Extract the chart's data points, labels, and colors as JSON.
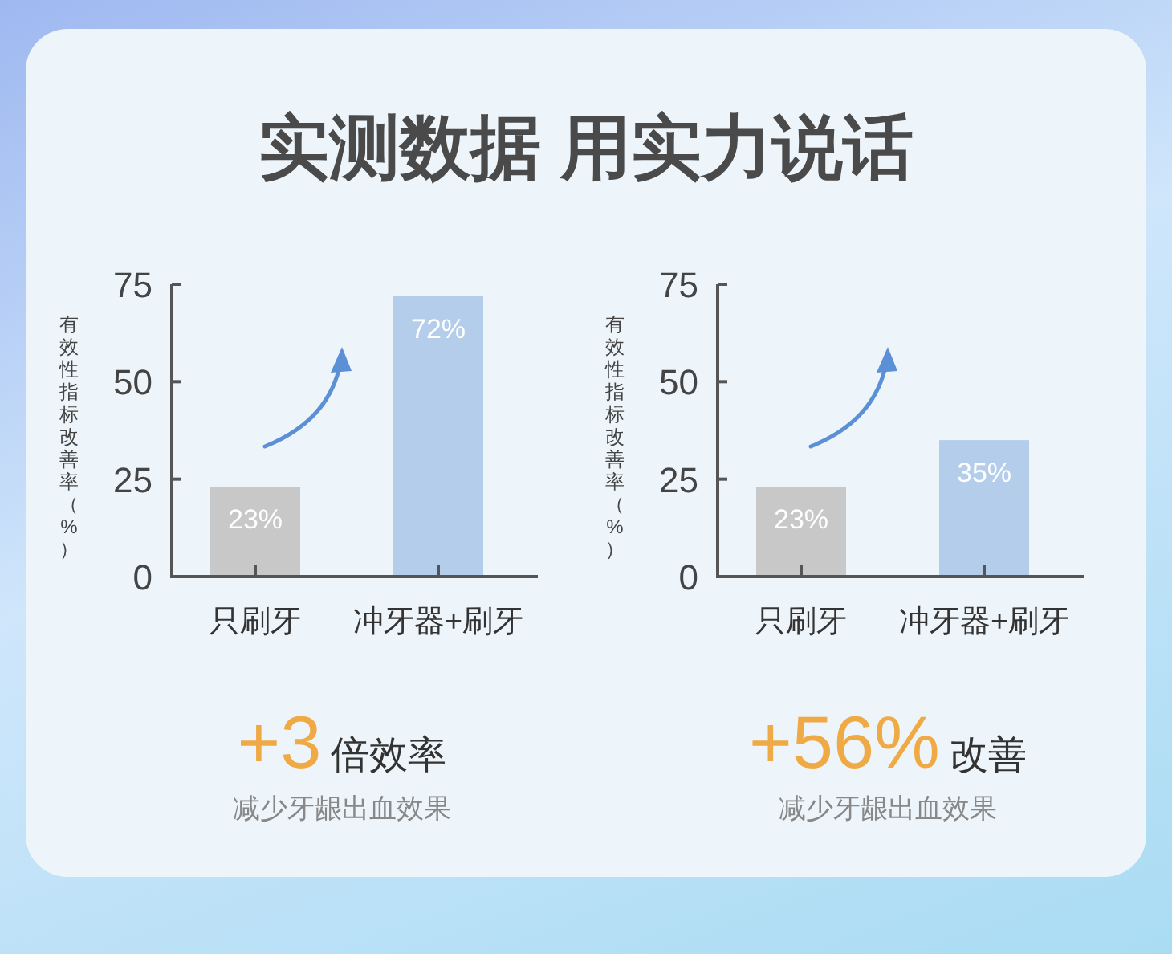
{
  "chart_data": [
    {
      "type": "bar",
      "title": "实测数据 用实力说话",
      "ylabel": "有效性指标改善率（%）",
      "categories": [
        "只刷牙",
        "冲牙器+刷牙"
      ],
      "values": [
        23,
        72
      ],
      "colors": [
        "#c8c8c8",
        "#b4cdea"
      ],
      "value_labels": [
        "23%",
        "72%"
      ],
      "ylim": [
        0,
        75
      ],
      "yticks": [
        0,
        25,
        50,
        75
      ],
      "grid": false,
      "annotations": [
        "+3",
        "倍效率",
        "减少牙龈出血效果"
      ]
    },
    {
      "type": "bar",
      "ylabel": "有效性指标改善率（%）",
      "categories": [
        "只刷牙",
        "冲牙器+刷牙"
      ],
      "values": [
        23,
        35
      ],
      "colors": [
        "#c8c8c8",
        "#b4cdea"
      ],
      "value_labels": [
        "23%",
        "35%"
      ],
      "ylim": [
        0,
        75
      ],
      "yticks": [
        0,
        25,
        50,
        75
      ],
      "grid": false,
      "annotations": [
        "+56%",
        "改善",
        "减少牙龈出血效果"
      ]
    }
  ]
}
